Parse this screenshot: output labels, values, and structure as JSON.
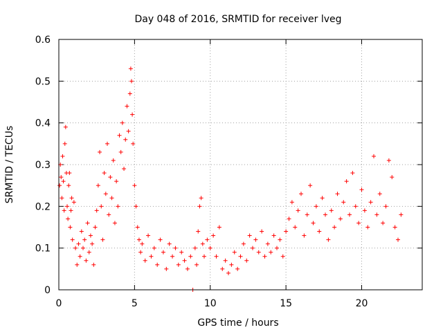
{
  "chart_data": {
    "type": "scatter",
    "title": "Day 048 of 2016, SRMTID for receiver lveg",
    "xlabel": "GPS time / hours",
    "ylabel": "SRMTID / TECUs",
    "xlim": [
      0,
      24
    ],
    "ylim": [
      0,
      0.6
    ],
    "x_ticks": [
      0,
      5,
      10,
      15,
      20
    ],
    "x_tick_labels": [
      "0",
      "5",
      "10",
      "15",
      "20"
    ],
    "y_ticks": [
      0,
      0.1,
      0.2,
      0.3,
      0.4,
      0.5,
      0.6
    ],
    "y_tick_labels": [
      "0",
      "0.1",
      "0.2",
      "0.3",
      "0.4",
      "0.5",
      "0.6"
    ],
    "grid": true,
    "marker": "+",
    "color": "#ff0000",
    "series": [
      {
        "name": "SRMTID",
        "points": [
          [
            0.05,
            0.25
          ],
          [
            0.1,
            0.3
          ],
          [
            0.15,
            0.27
          ],
          [
            0.2,
            0.22
          ],
          [
            0.25,
            0.32
          ],
          [
            0.3,
            0.26
          ],
          [
            0.35,
            0.19
          ],
          [
            0.4,
            0.35
          ],
          [
            0.45,
            0.39
          ],
          [
            0.5,
            0.28
          ],
          [
            0.55,
            0.2
          ],
          [
            0.6,
            0.17
          ],
          [
            0.65,
            0.25
          ],
          [
            0.7,
            0.28
          ],
          [
            0.75,
            0.15
          ],
          [
            0.8,
            0.19
          ],
          [
            0.85,
            0.22
          ],
          [
            0.9,
            0.12
          ],
          [
            1.0,
            0.21
          ],
          [
            1.1,
            0.1
          ],
          [
            1.2,
            0.06
          ],
          [
            1.3,
            0.11
          ],
          [
            1.4,
            0.08
          ],
          [
            1.5,
            0.14
          ],
          [
            1.6,
            0.1
          ],
          [
            1.7,
            0.12
          ],
          [
            1.8,
            0.07
          ],
          [
            1.9,
            0.16
          ],
          [
            2.0,
            0.09
          ],
          [
            2.1,
            0.13
          ],
          [
            2.2,
            0.11
          ],
          [
            2.3,
            0.06
          ],
          [
            2.4,
            0.15
          ],
          [
            2.5,
            0.19
          ],
          [
            2.6,
            0.25
          ],
          [
            2.7,
            0.33
          ],
          [
            2.8,
            0.2
          ],
          [
            2.9,
            0.12
          ],
          [
            3.0,
            0.28
          ],
          [
            3.1,
            0.23
          ],
          [
            3.2,
            0.35
          ],
          [
            3.3,
            0.18
          ],
          [
            3.4,
            0.27
          ],
          [
            3.5,
            0.22
          ],
          [
            3.6,
            0.31
          ],
          [
            3.7,
            0.16
          ],
          [
            3.8,
            0.26
          ],
          [
            3.9,
            0.2
          ],
          [
            4.0,
            0.37
          ],
          [
            4.1,
            0.33
          ],
          [
            4.2,
            0.4
          ],
          [
            4.3,
            0.29
          ],
          [
            4.4,
            0.36
          ],
          [
            4.5,
            0.44
          ],
          [
            4.6,
            0.38
          ],
          [
            4.7,
            0.47
          ],
          [
            4.75,
            0.53
          ],
          [
            4.8,
            0.5
          ],
          [
            4.85,
            0.42
          ],
          [
            4.9,
            0.35
          ],
          [
            5.0,
            0.25
          ],
          [
            5.1,
            0.2
          ],
          [
            5.2,
            0.15
          ],
          [
            5.3,
            0.12
          ],
          [
            5.4,
            0.09
          ],
          [
            5.5,
            0.11
          ],
          [
            5.7,
            0.07
          ],
          [
            5.9,
            0.13
          ],
          [
            6.1,
            0.08
          ],
          [
            6.3,
            0.1
          ],
          [
            6.5,
            0.06
          ],
          [
            6.7,
            0.12
          ],
          [
            6.9,
            0.09
          ],
          [
            7.1,
            0.05
          ],
          [
            7.3,
            0.11
          ],
          [
            7.5,
            0.08
          ],
          [
            7.7,
            0.1
          ],
          [
            7.9,
            0.06
          ],
          [
            8.1,
            0.09
          ],
          [
            8.3,
            0.07
          ],
          [
            8.5,
            0.05
          ],
          [
            8.7,
            0.08
          ],
          [
            8.85,
            0.0
          ],
          [
            9.0,
            0.1
          ],
          [
            9.1,
            0.06
          ],
          [
            9.2,
            0.14
          ],
          [
            9.3,
            0.2
          ],
          [
            9.4,
            0.22
          ],
          [
            9.5,
            0.11
          ],
          [
            9.6,
            0.08
          ],
          [
            9.8,
            0.12
          ],
          [
            10.0,
            0.1
          ],
          [
            10.2,
            0.13
          ],
          [
            10.4,
            0.08
          ],
          [
            10.6,
            0.15
          ],
          [
            10.8,
            0.05
          ],
          [
            11.0,
            0.07
          ],
          [
            11.2,
            0.04
          ],
          [
            11.4,
            0.06
          ],
          [
            11.6,
            0.09
          ],
          [
            11.8,
            0.05
          ],
          [
            12.0,
            0.08
          ],
          [
            12.2,
            0.11
          ],
          [
            12.4,
            0.07
          ],
          [
            12.6,
            0.13
          ],
          [
            12.8,
            0.1
          ],
          [
            13.0,
            0.12
          ],
          [
            13.2,
            0.09
          ],
          [
            13.4,
            0.14
          ],
          [
            13.6,
            0.08
          ],
          [
            13.8,
            0.11
          ],
          [
            14.0,
            0.09
          ],
          [
            14.2,
            0.13
          ],
          [
            14.4,
            0.1
          ],
          [
            14.6,
            0.12
          ],
          [
            14.8,
            0.08
          ],
          [
            15.0,
            0.14
          ],
          [
            15.2,
            0.17
          ],
          [
            15.4,
            0.21
          ],
          [
            15.6,
            0.15
          ],
          [
            15.8,
            0.19
          ],
          [
            16.0,
            0.23
          ],
          [
            16.2,
            0.13
          ],
          [
            16.4,
            0.18
          ],
          [
            16.6,
            0.25
          ],
          [
            16.8,
            0.16
          ],
          [
            17.0,
            0.2
          ],
          [
            17.2,
            0.14
          ],
          [
            17.4,
            0.22
          ],
          [
            17.6,
            0.18
          ],
          [
            17.8,
            0.12
          ],
          [
            18.0,
            0.19
          ],
          [
            18.2,
            0.15
          ],
          [
            18.4,
            0.23
          ],
          [
            18.6,
            0.17
          ],
          [
            18.8,
            0.21
          ],
          [
            19.0,
            0.26
          ],
          [
            19.2,
            0.18
          ],
          [
            19.4,
            0.28
          ],
          [
            19.6,
            0.2
          ],
          [
            19.8,
            0.16
          ],
          [
            20.0,
            0.24
          ],
          [
            20.2,
            0.19
          ],
          [
            20.4,
            0.15
          ],
          [
            20.6,
            0.21
          ],
          [
            20.8,
            0.32
          ],
          [
            21.0,
            0.18
          ],
          [
            21.2,
            0.23
          ],
          [
            21.4,
            0.16
          ],
          [
            21.6,
            0.2
          ],
          [
            21.8,
            0.31
          ],
          [
            22.0,
            0.27
          ],
          [
            22.2,
            0.15
          ],
          [
            22.4,
            0.12
          ],
          [
            22.6,
            0.18
          ]
        ]
      }
    ]
  }
}
